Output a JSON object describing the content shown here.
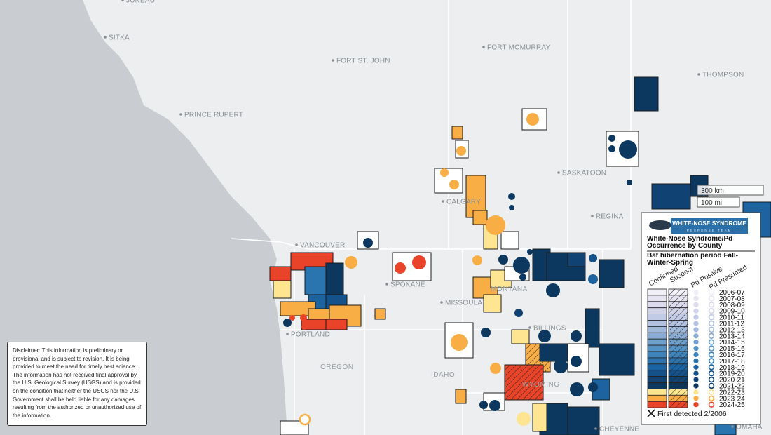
{
  "map": {
    "cities": [
      "JUNEAU",
      "SITKA",
      "FORT ST. JOHN",
      "FORT MCMURRAY",
      "THOMPSON",
      "PRINCE RUPERT",
      "SASKATOON",
      "CALGARY",
      "REGINA",
      "VANCOUVER",
      "SPOKANE",
      "MISSOULA",
      "PORTLAND",
      "BILLINGS",
      "CHEYENNE",
      "OMAHA"
    ],
    "regions": [
      "MONTANA",
      "OREGON",
      "IDAHO",
      "WYOMING"
    ],
    "scale": [
      "300 km",
      "100 mi"
    ]
  },
  "legend": {
    "logo_title": "WHITE-NOSE SYNDROME",
    "logo_subtitle": "RESPONSE TEAM",
    "title": "White-Nose Syndrome/Pd Occurrence by County",
    "subtitle": "Bat hibernation period Fall-Winter-Spring",
    "columns": [
      "Confirmed",
      "Suspect",
      "Pd Positive",
      "Pd Presumed"
    ],
    "periods": [
      {
        "label": "2006-07",
        "color": "#f1eff7"
      },
      {
        "label": "2007-08",
        "color": "#e7e4f1"
      },
      {
        "label": "2008-09",
        "color": "#dcdbee"
      },
      {
        "label": "2009-10",
        "color": "#d0d3ea"
      },
      {
        "label": "2010-11",
        "color": "#c2cbe6"
      },
      {
        "label": "2011-12",
        "color": "#b2c2e0"
      },
      {
        "label": "2012-13",
        "color": "#9fb8db"
      },
      {
        "label": "2013-14",
        "color": "#88acd4"
      },
      {
        "label": "2014-15",
        "color": "#6fa0cd"
      },
      {
        "label": "2015-16",
        "color": "#5593c5"
      },
      {
        "label": "2016-17",
        "color": "#3d84bc"
      },
      {
        "label": "2017-18",
        "color": "#2a74b0"
      },
      {
        "label": "2018-19",
        "color": "#1d63a0"
      },
      {
        "label": "2019-20",
        "color": "#15528a"
      },
      {
        "label": "2020-21",
        "color": "#104373"
      },
      {
        "label": "2021-22",
        "color": "#0c3860"
      },
      {
        "label": "2022-23",
        "color": "#fde591"
      },
      {
        "label": "2023-24",
        "color": "#f9ae45"
      },
      {
        "label": "2024-25",
        "color": "#e9432a"
      }
    ],
    "first_detected": "First detected 2/2006"
  },
  "disclaimer": "Disclaimer: This information is preliminary or provisional and is subject to revision. It is being provided to meet the need for timely best science. The information has not received final approval by the U.S. Geological Survey (USGS) and is provided on the condition that neither the USGS nor the U.S. Government shall be held liable for any damages resulting from the authorized or unauthorized use of the information."
}
